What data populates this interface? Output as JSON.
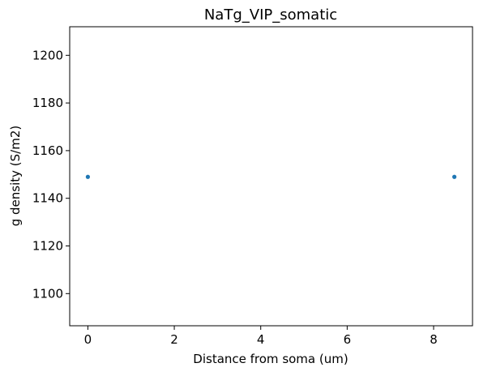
{
  "chart_data": {
    "type": "scatter",
    "title": "NaTg_VIP_somatic",
    "xlabel": "Distance from soma (um)",
    "ylabel": "g density (S/m2)",
    "xlim": [
      -0.42,
      8.9
    ],
    "ylim": [
      1086.5,
      1212
    ],
    "xticks": [
      0,
      2,
      4,
      6,
      8
    ],
    "yticks": [
      1100,
      1120,
      1140,
      1160,
      1180,
      1200
    ],
    "grid": false,
    "marker_color": "#1f77b4",
    "points": [
      {
        "x": 0,
        "y": 1149
      },
      {
        "x": 8.48,
        "y": 1149
      }
    ]
  }
}
